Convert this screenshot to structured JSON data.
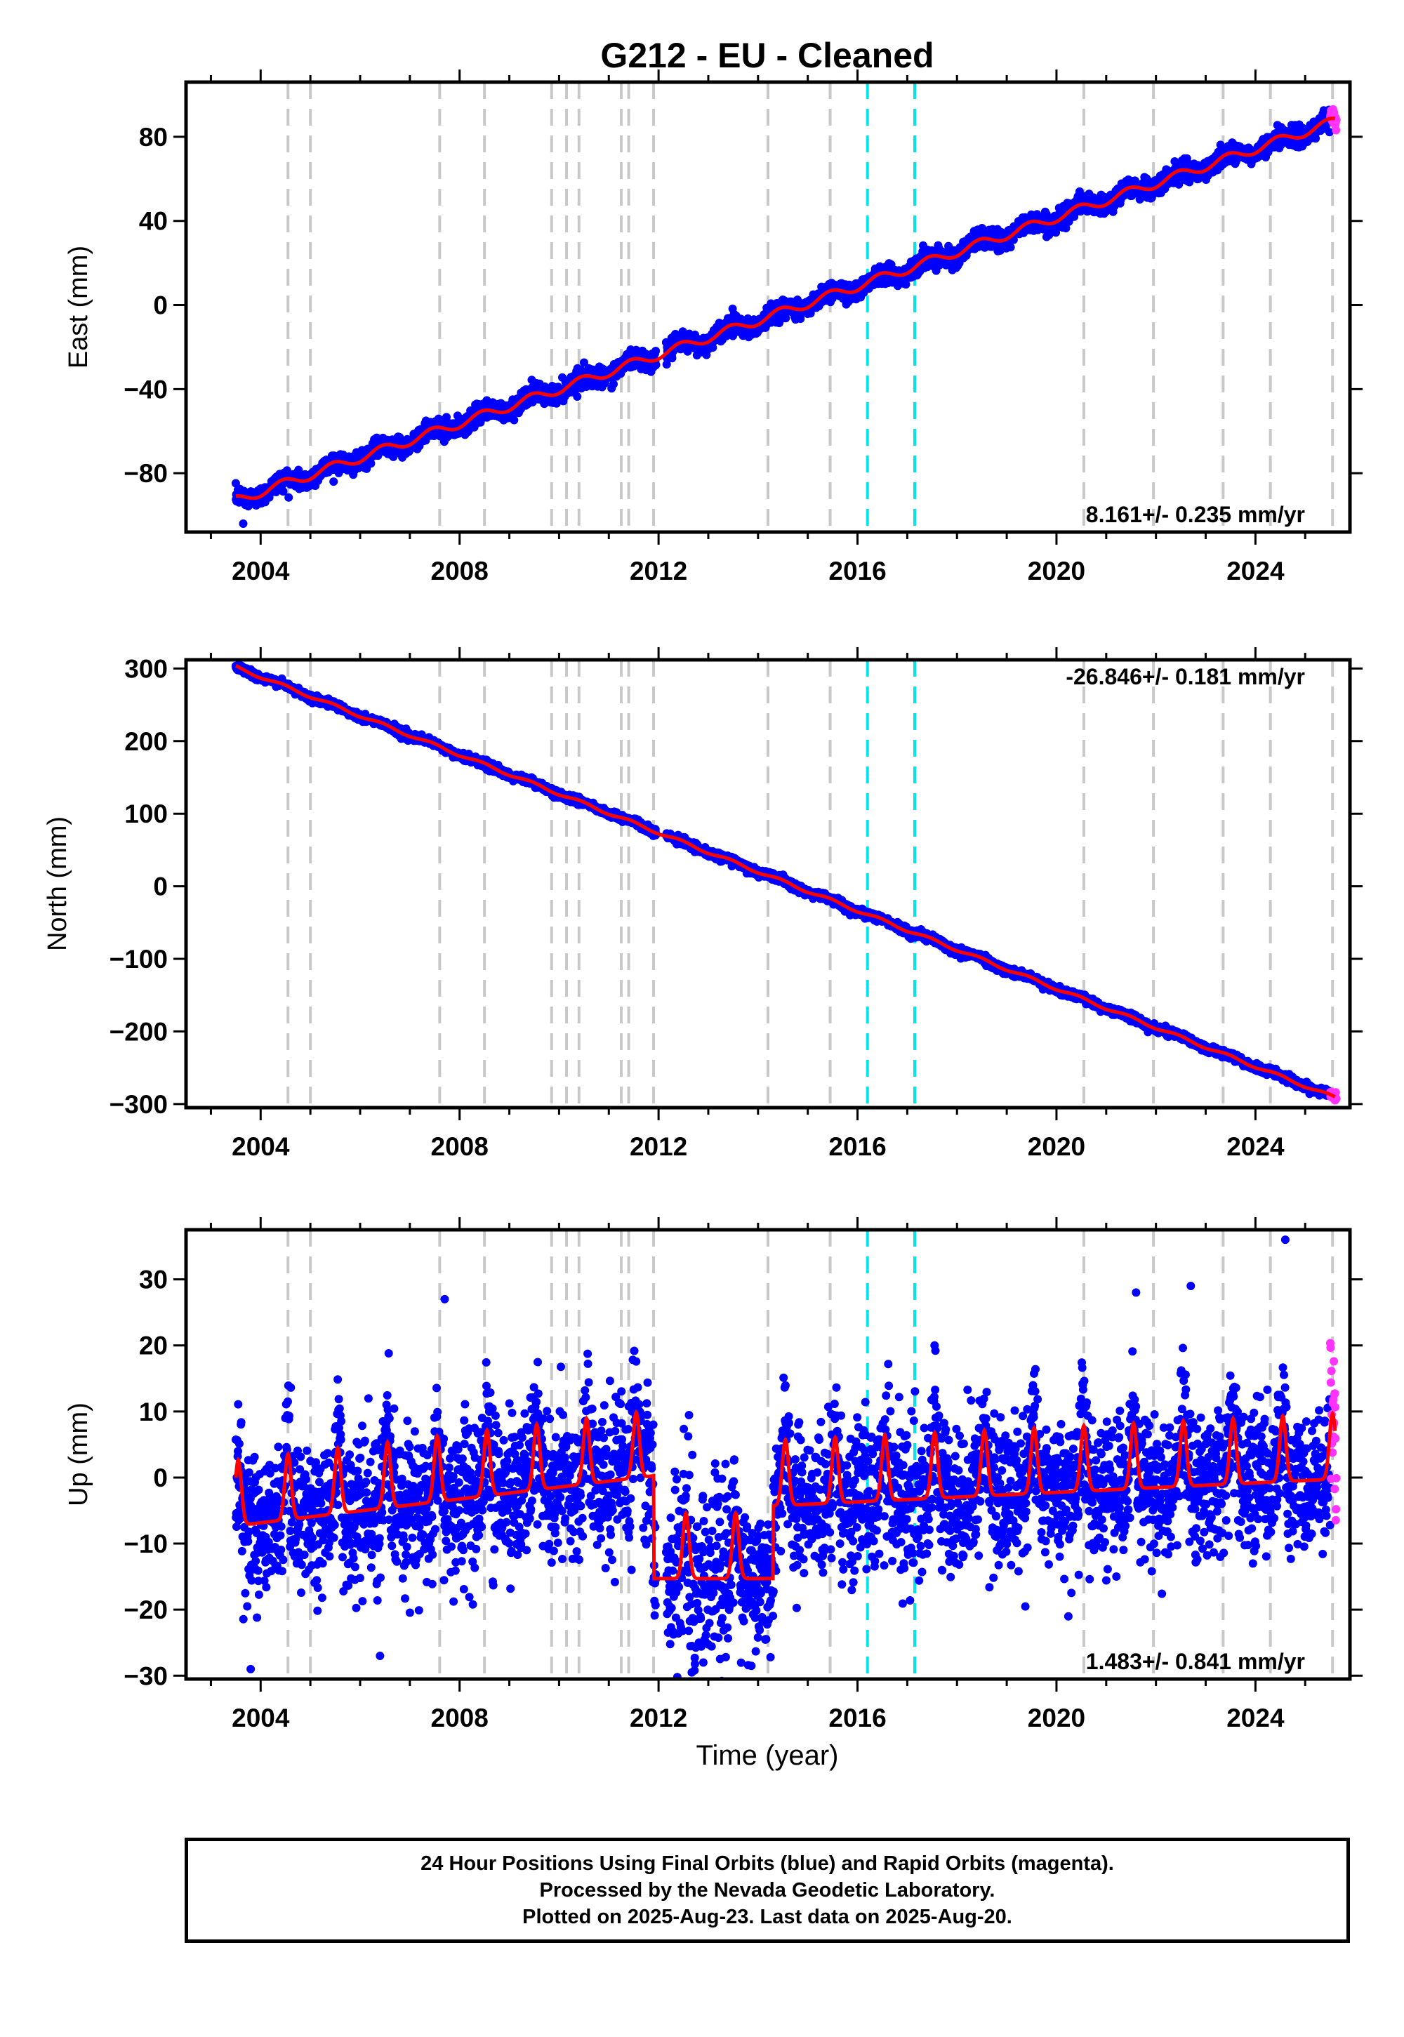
{
  "title": "G212  - EU - Cleaned",
  "xlabel": "Time (year)",
  "x_ticks": [
    2004,
    2008,
    2012,
    2016,
    2020,
    2024
  ],
  "xlim": [
    2002.5,
    2025.9
  ],
  "colors": {
    "final": "#0000ff",
    "rapid": "#ff33ff",
    "model": "#ff0000",
    "event_gray": "#c8c8c8",
    "event_cyan": "#00e5ee"
  },
  "events_gray": [
    2004.55,
    2005.0,
    2007.6,
    2008.5,
    2009.85,
    2010.15,
    2010.4,
    2011.25,
    2011.4,
    2011.9,
    2014.2,
    2015.45,
    2020.55,
    2021.95,
    2023.35,
    2024.3,
    2025.55
  ],
  "events_cyan": [
    2016.2,
    2017.15
  ],
  "chart_data": [
    {
      "type": "scatter",
      "name": "east",
      "ylabel": "East (mm)",
      "ylim": [
        -108,
        106
      ],
      "y_ticks": [
        -80,
        -40,
        0,
        40,
        80
      ],
      "rate_label": "8.161+/- 0.235 mm/yr",
      "rate_pos": "bottom-right",
      "rate": 8.161,
      "y_at_start": -93,
      "t_start": 2003.5,
      "seasonal_amp": 2.2,
      "scatter_mm": 2.2,
      "outliers": [
        {
          "x": 2003.65,
          "y": -104
        }
      ],
      "jumps": [
        {
          "x": 2011.9,
          "dy": 0
        }
      ],
      "gap": [
        2011.95,
        2012.15
      ]
    },
    {
      "type": "scatter",
      "name": "north",
      "ylabel": "North (mm)",
      "ylim": [
        -305,
        312
      ],
      "y_ticks": [
        -300,
        -200,
        -100,
        0,
        100,
        200,
        300
      ],
      "rate_label": "-26.846+/- 0.181 mm/yr",
      "rate_pos": "top-right",
      "rate": -26.846,
      "y_at_start": 302,
      "t_start": 2003.5,
      "seasonal_amp": 2.0,
      "scatter_mm": 2.5,
      "outliers": [],
      "gap": [
        2011.95,
        2012.15
      ]
    },
    {
      "type": "scatter",
      "name": "up",
      "ylabel": "Up (mm)",
      "ylim": [
        -30.5,
        37.5
      ],
      "y_ticks": [
        -30,
        -20,
        -10,
        0,
        10,
        20,
        30
      ],
      "rate_label": "1.483+/- 0.841 mm/yr",
      "rate_pos": "bottom-right",
      "rate": 1.483,
      "y_at_start": -3,
      "t_start": 2003.5,
      "seasonal_amp": 5.5,
      "scatter_mm": 5.5,
      "outliers": [
        {
          "x": 2024.6,
          "y": 36
        },
        {
          "x": 2007.7,
          "y": 27
        },
        {
          "x": 2021.6,
          "y": 28
        },
        {
          "x": 2022.7,
          "y": 29
        },
        {
          "x": 2003.8,
          "y": -29
        },
        {
          "x": 2006.4,
          "y": -27
        },
        {
          "x": 2012.9,
          "y": -28
        }
      ],
      "gap": [
        2011.95,
        2012.15
      ]
    }
  ],
  "footer": {
    "line1": "24 Hour Positions Using Final Orbits (blue) and Rapid Orbits (magenta).",
    "line2": "Processed by the Nevada Geodetic Laboratory.",
    "line3": "Plotted on 2025-Aug-23. Last data on 2025-Aug-20."
  }
}
